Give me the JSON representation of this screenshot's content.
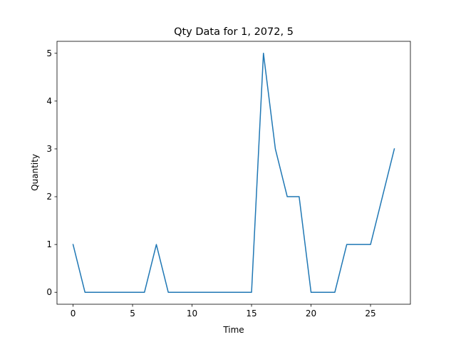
{
  "chart_data": {
    "type": "line",
    "title": "Qty Data for 1, 2072, 5",
    "xlabel": "Time",
    "ylabel": "Quantity",
    "xlim": [
      -1.35,
      28.35
    ],
    "ylim": [
      -0.25,
      5.25
    ],
    "xticks": [
      0,
      5,
      10,
      15,
      20,
      25
    ],
    "yticks": [
      0,
      1,
      2,
      3,
      4,
      5
    ],
    "grid": false,
    "series": [
      {
        "color": "#1f77b4",
        "x": [
          0,
          1,
          2,
          3,
          4,
          5,
          6,
          7,
          8,
          9,
          10,
          11,
          12,
          13,
          14,
          15,
          16,
          17,
          18,
          19,
          20,
          21,
          22,
          23,
          24,
          25,
          26,
          27
        ],
        "y": [
          1,
          0,
          0,
          0,
          0,
          0,
          0,
          1,
          0,
          0,
          0,
          0,
          0,
          0,
          0,
          0,
          5,
          3,
          2,
          2,
          0,
          0,
          0,
          1,
          1,
          1,
          2,
          3
        ]
      }
    ]
  }
}
